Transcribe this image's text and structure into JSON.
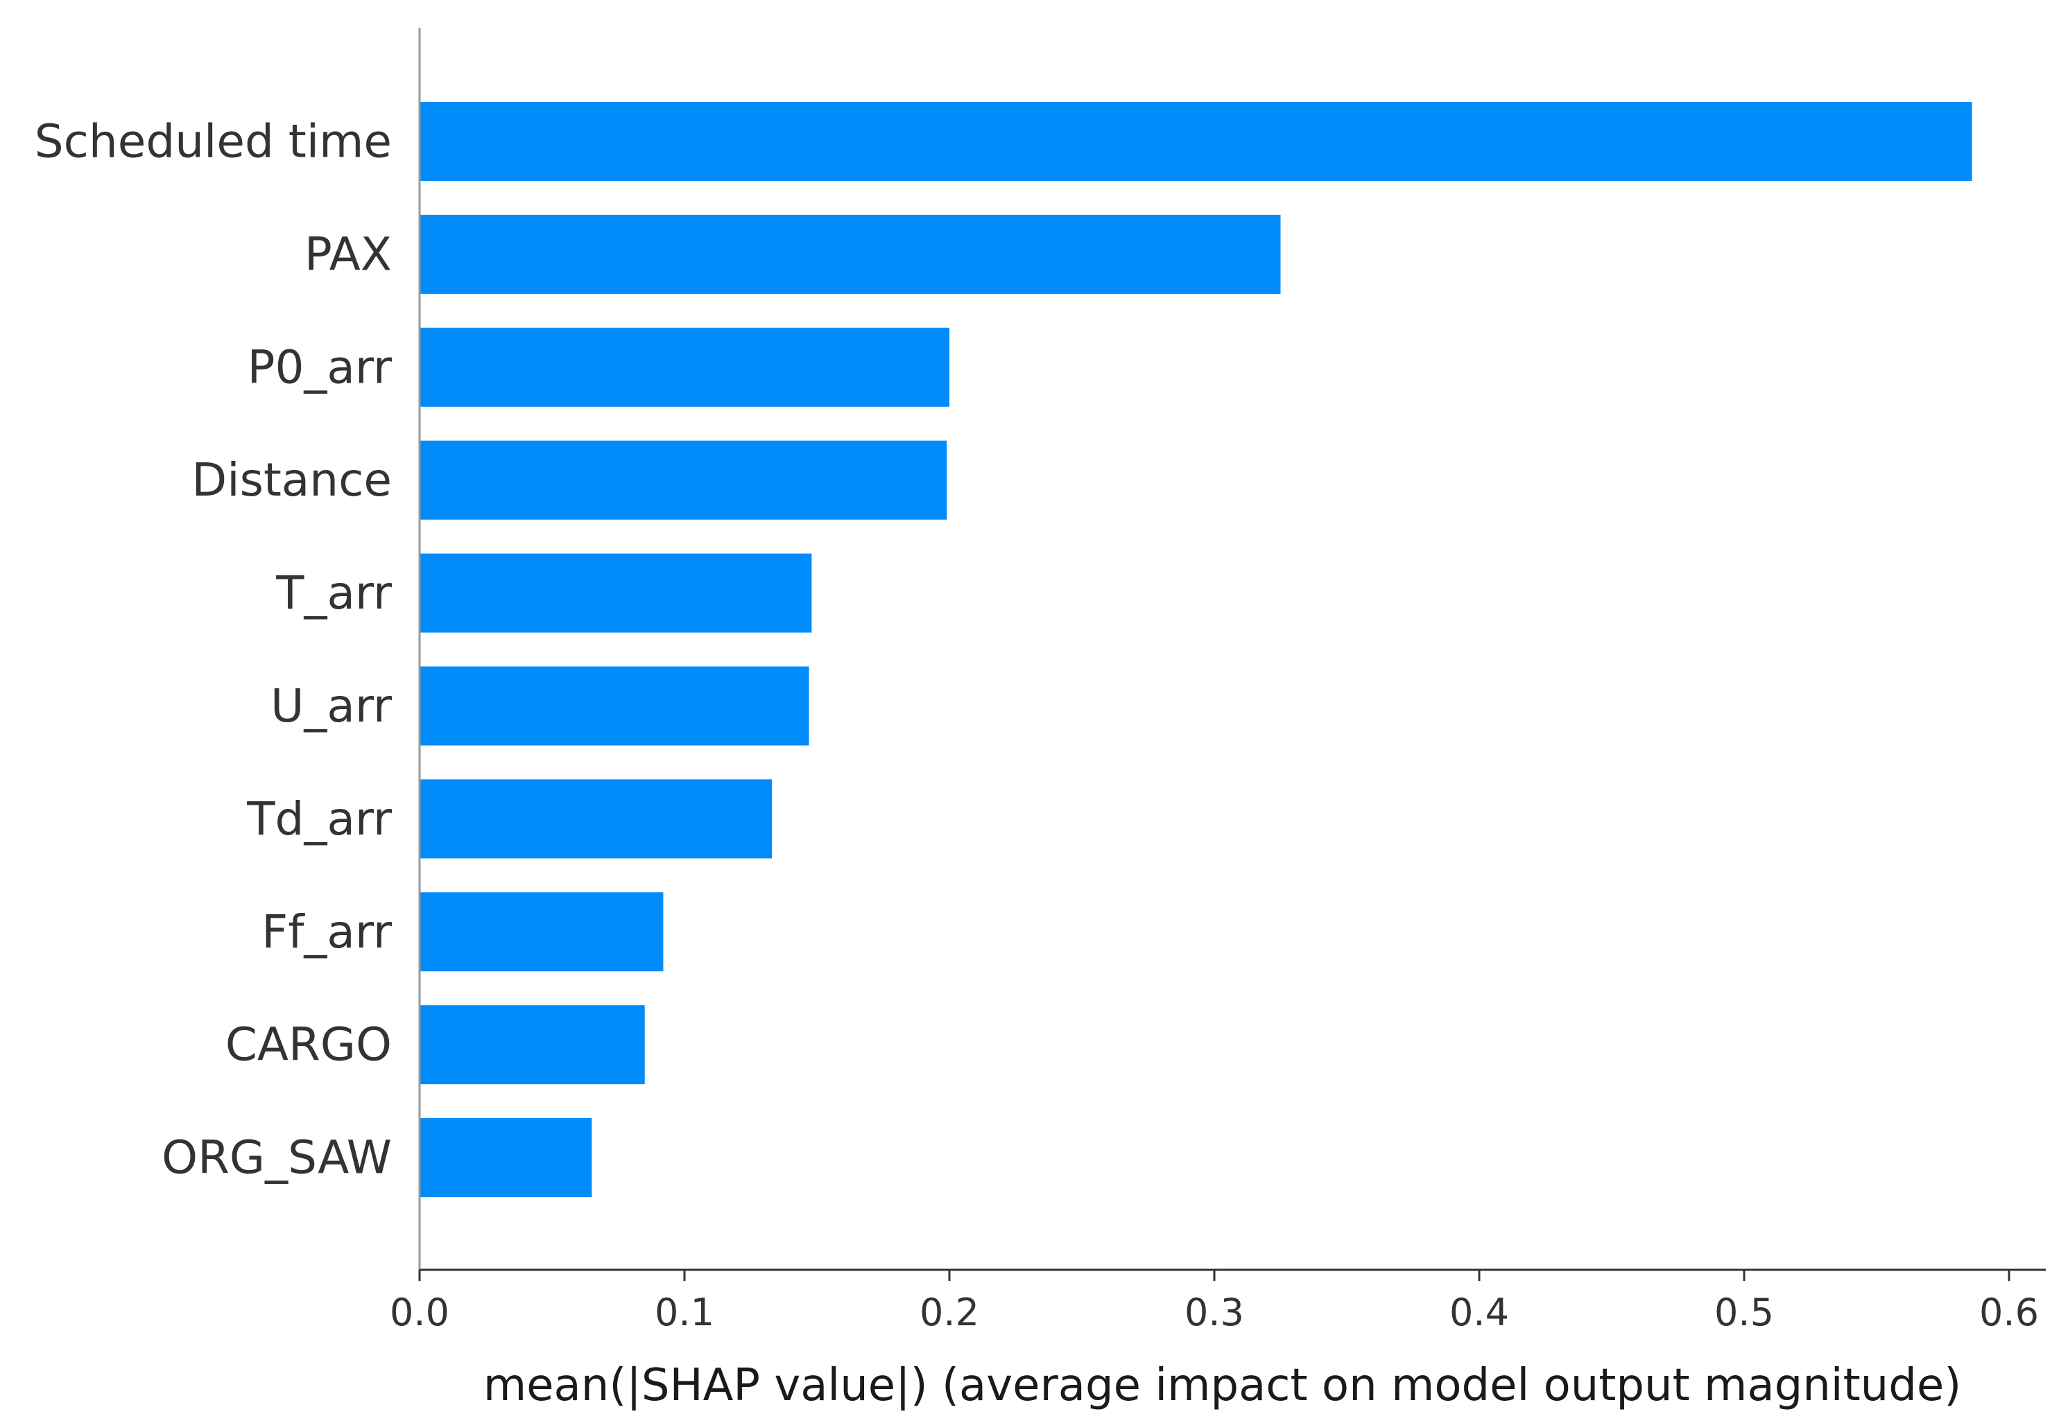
{
  "chart_data": {
    "type": "bar",
    "orientation": "horizontal",
    "categories": [
      "Scheduled time",
      "PAX",
      "P0_arr",
      "Distance",
      "T_arr",
      "U_arr",
      "Td_arr",
      "Ff_arr",
      "CARGO",
      "ORG_SAW"
    ],
    "values": [
      0.586,
      0.325,
      0.2,
      0.199,
      0.148,
      0.147,
      0.133,
      0.092,
      0.085,
      0.065
    ],
    "xlabel": "mean(|SHAP value|) (average impact on model output magnitude)",
    "ylabel": "",
    "title": "",
    "xlim": [
      0.0,
      0.615
    ],
    "xticks": [
      0.0,
      0.1,
      0.2,
      0.3,
      0.4,
      0.5,
      0.6
    ],
    "xtick_labels": [
      "0.0",
      "0.1",
      "0.2",
      "0.3",
      "0.4",
      "0.5",
      "0.6"
    ],
    "grid": false,
    "legend": "none",
    "bar_color": "#008bfb"
  }
}
